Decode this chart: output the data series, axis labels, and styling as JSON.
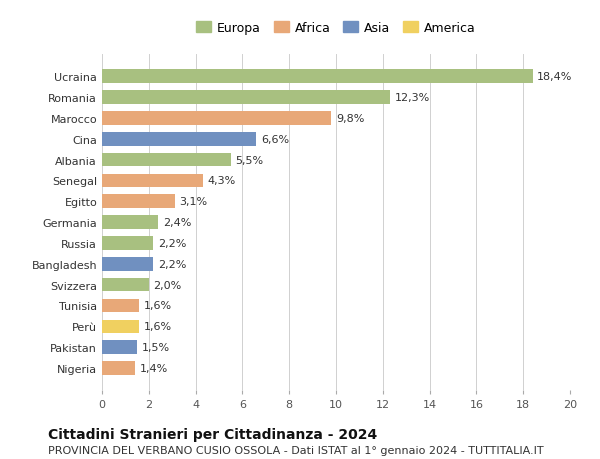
{
  "title": "Cittadini Stranieri per Cittadinanza - 2024",
  "subtitle": "PROVINCIA DEL VERBANO CUSIO OSSOLA - Dati ISTAT al 1° gennaio 2024 - TUTTITALIA.IT",
  "categories": [
    "Ucraina",
    "Romania",
    "Marocco",
    "Cina",
    "Albania",
    "Senegal",
    "Egitto",
    "Germania",
    "Russia",
    "Bangladesh",
    "Svizzera",
    "Tunisia",
    "Perù",
    "Pakistan",
    "Nigeria"
  ],
  "values": [
    18.4,
    12.3,
    9.8,
    6.6,
    5.5,
    4.3,
    3.1,
    2.4,
    2.2,
    2.2,
    2.0,
    1.6,
    1.6,
    1.5,
    1.4
  ],
  "labels": [
    "18,4%",
    "12,3%",
    "9,8%",
    "6,6%",
    "5,5%",
    "4,3%",
    "3,1%",
    "2,4%",
    "2,2%",
    "2,2%",
    "2,0%",
    "1,6%",
    "1,6%",
    "1,5%",
    "1,4%"
  ],
  "continents": [
    "Europa",
    "Europa",
    "Africa",
    "Asia",
    "Europa",
    "Africa",
    "Africa",
    "Europa",
    "Europa",
    "Asia",
    "Europa",
    "Africa",
    "America",
    "Asia",
    "Africa"
  ],
  "continent_colors": {
    "Europa": "#a8c080",
    "Africa": "#e8a878",
    "Asia": "#7090c0",
    "America": "#f0d060"
  },
  "legend_order": [
    "Europa",
    "Africa",
    "Asia",
    "America"
  ],
  "xlim": [
    0,
    20
  ],
  "xticks": [
    0,
    2,
    4,
    6,
    8,
    10,
    12,
    14,
    16,
    18,
    20
  ],
  "background_color": "#ffffff",
  "grid_color": "#d0d0d0",
  "bar_height": 0.65,
  "title_fontsize": 10,
  "subtitle_fontsize": 8,
  "label_fontsize": 8,
  "tick_fontsize": 8,
  "legend_fontsize": 9
}
